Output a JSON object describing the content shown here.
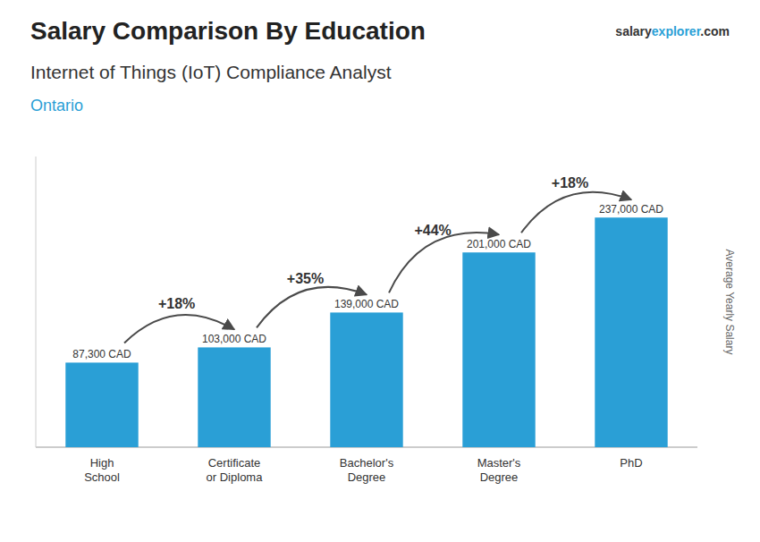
{
  "chart_data": {
    "type": "bar",
    "title": "Salary Comparison By Education",
    "subtitle": "Internet of Things (IoT) Compliance Analyst",
    "location": "Ontario",
    "site": [
      "salary",
      "explorer",
      ".com"
    ],
    "ylabel": "Average Yearly Salary",
    "categories": [
      "High\nSchool",
      "Certificate\nor Diploma",
      "Bachelor's\nDegree",
      "Master's\nDegree",
      "PhD"
    ],
    "values": [
      87300,
      103000,
      139000,
      201000,
      237000
    ],
    "value_labels": [
      "87,300 CAD",
      "103,000 CAD",
      "139,000 CAD",
      "201,000 CAD",
      "237,000 CAD"
    ],
    "annotations": [
      {
        "value": 18,
        "label": "+18%"
      },
      {
        "value": 35,
        "label": "+35%"
      },
      {
        "value": 44,
        "label": "+44%"
      },
      {
        "value": 18,
        "label": "+18%"
      }
    ],
    "color": "#2a9fd6",
    "ylim": [
      0,
      300000
    ],
    "data_labels": true,
    "tick_labels": "x",
    "grid": false
  }
}
